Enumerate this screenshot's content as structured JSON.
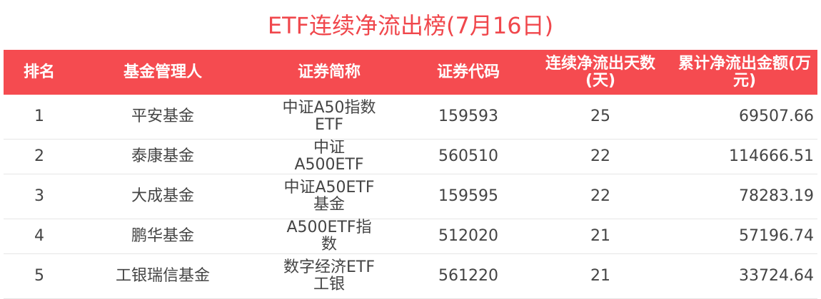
{
  "title": "ETF连续净流出榜(7月16日)",
  "headers": [
    "排名",
    "基金管理人",
    "证券简称",
    "证券代码",
    "连续净流出天数(天)",
    "累计净流出金额(万元)"
  ],
  "rows": [
    {
      "rank": "1",
      "manager": "平安基金",
      "name": "中证A50指数ETF",
      "code": "159593",
      "days": "25",
      "amount": "69507.66"
    },
    {
      "rank": "2",
      "manager": "泰康基金",
      "name": "中证A500ETF",
      "code": "560510",
      "days": "22",
      "amount": "114666.51"
    },
    {
      "rank": "3",
      "manager": "大成基金",
      "name": "中证A50ETF基金",
      "code": "159595",
      "days": "22",
      "amount": "78283.19"
    },
    {
      "rank": "4",
      "manager": "鹏华基金",
      "name": "A500ETF指数",
      "code": "512020",
      "days": "21",
      "amount": "57196.74"
    },
    {
      "rank": "5",
      "manager": "工银瑞信基金",
      "name": "数字经济ETF工银",
      "code": "561220",
      "days": "21",
      "amount": "33724.64"
    }
  ],
  "colors": {
    "header_bg": "#f54b50",
    "title": "#f0474c"
  }
}
